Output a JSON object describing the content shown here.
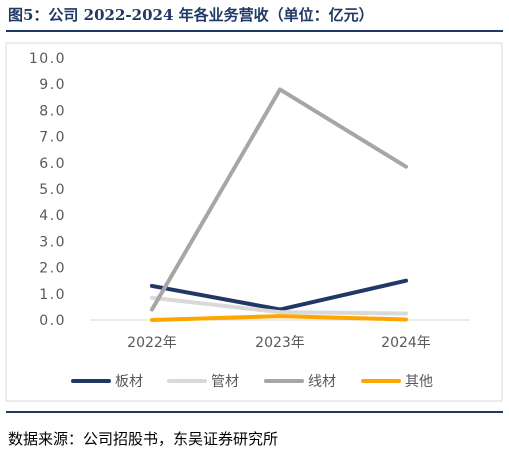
{
  "figure": {
    "title": "图5：公司 2022-2024 年各业务营收（单位：亿元）",
    "source": "数据来源：公司招股书，东吴证券研究所"
  },
  "chart_data": {
    "type": "line",
    "title": "",
    "xlabel": "",
    "ylabel": "",
    "categories": [
      "2022年",
      "2023年",
      "2024年"
    ],
    "ylim": [
      0,
      10
    ],
    "yticks": [
      "0.0",
      "1.0",
      "2.0",
      "3.0",
      "4.0",
      "5.0",
      "6.0",
      "7.0",
      "8.0",
      "9.0",
      "10.0"
    ],
    "grid": false,
    "legend_position": "bottom",
    "series": [
      {
        "name": "板材",
        "color": "#1f3864",
        "values": [
          1.3,
          0.4,
          1.5
        ]
      },
      {
        "name": "管材",
        "color": "#d9d9d9",
        "values": [
          0.85,
          0.3,
          0.25
        ]
      },
      {
        "name": "线材",
        "color": "#a6a6a6",
        "values": [
          0.4,
          8.8,
          5.85
        ]
      },
      {
        "name": "其他",
        "color": "#ffa500",
        "values": [
          0.0,
          0.15,
          0.02
        ]
      }
    ]
  }
}
